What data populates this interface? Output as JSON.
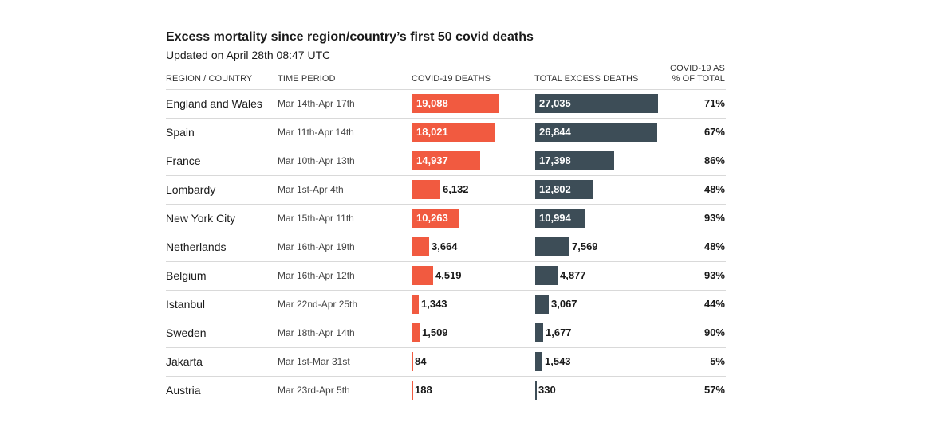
{
  "chart_data": {
    "type": "table",
    "title": "Excess mortality since region/country’s first 50 covid deaths",
    "subtitle": "Updated on April 28th 08:47 UTC",
    "columns": {
      "region": "REGION / COUNTRY",
      "period": "TIME PERIOD",
      "covid": "COVID-19 DEATHS",
      "excess": "TOTAL EXCESS DEATHS",
      "pct_line1": "COVID-19 AS",
      "pct_line2": "% OF TOTAL"
    },
    "colors": {
      "covid": "#f15a40",
      "excess": "#3d4d57"
    },
    "rows": [
      {
        "region": "England and Wales",
        "period": "Mar 14th-Apr 17th",
        "covid": 19088,
        "covid_label": "19,088",
        "excess": 27035,
        "excess_label": "27,035",
        "pct": "71%"
      },
      {
        "region": "Spain",
        "period": "Mar 11th-Apr 14th",
        "covid": 18021,
        "covid_label": "18,021",
        "excess": 26844,
        "excess_label": "26,844",
        "pct": "67%"
      },
      {
        "region": "France",
        "period": "Mar 10th-Apr 13th",
        "covid": 14937,
        "covid_label": "14,937",
        "excess": 17398,
        "excess_label": "17,398",
        "pct": "86%"
      },
      {
        "region": "Lombardy",
        "period": "Mar 1st-Apr 4th",
        "covid": 6132,
        "covid_label": "6,132",
        "excess": 12802,
        "excess_label": "12,802",
        "pct": "48%"
      },
      {
        "region": "New York City",
        "period": "Mar 15th-Apr 11th",
        "covid": 10263,
        "covid_label": "10,263",
        "excess": 10994,
        "excess_label": "10,994",
        "pct": "93%"
      },
      {
        "region": "Netherlands",
        "period": "Mar 16th-Apr 19th",
        "covid": 3664,
        "covid_label": "3,664",
        "excess": 7569,
        "excess_label": "7,569",
        "pct": "48%"
      },
      {
        "region": "Belgium",
        "period": "Mar 16th-Apr 12th",
        "covid": 4519,
        "covid_label": "4,519",
        "excess": 4877,
        "excess_label": "4,877",
        "pct": "93%"
      },
      {
        "region": "Istanbul",
        "period": "Mar 22nd-Apr 25th",
        "covid": 1343,
        "covid_label": "1,343",
        "excess": 3067,
        "excess_label": "3,067",
        "pct": "44%"
      },
      {
        "region": "Sweden",
        "period": "Mar 18th-Apr 14th",
        "covid": 1509,
        "covid_label": "1,509",
        "excess": 1677,
        "excess_label": "1,677",
        "pct": "90%"
      },
      {
        "region": "Jakarta",
        "period": "Mar 1st-Mar 31st",
        "covid": 84,
        "covid_label": "84",
        "excess": 1543,
        "excess_label": "1,543",
        "pct": "5%"
      },
      {
        "region": "Austria",
        "period": "Mar 23rd-Apr 5th",
        "covid": 188,
        "covid_label": "188",
        "excess": 330,
        "excess_label": "330",
        "pct": "57%"
      }
    ]
  }
}
